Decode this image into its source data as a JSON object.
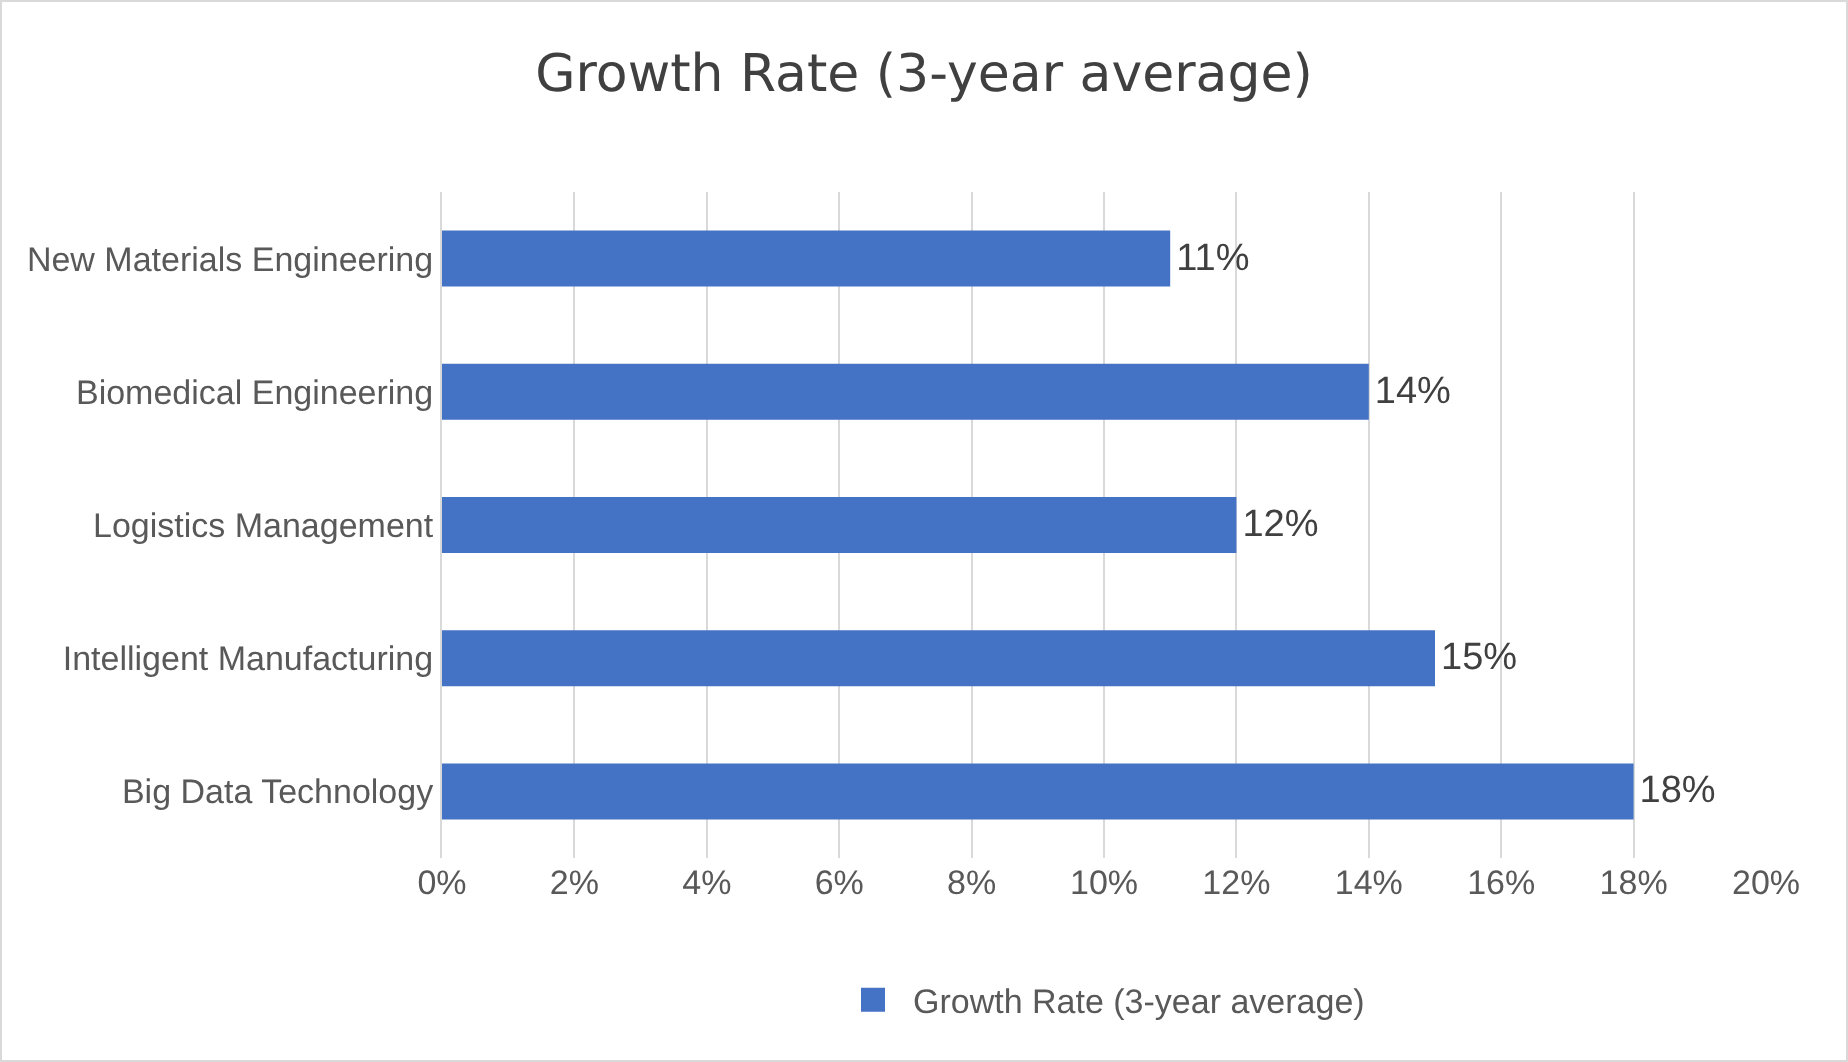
{
  "chart_data": {
    "type": "bar",
    "orientation": "horizontal",
    "title": "Growth Rate (3-year average)",
    "categories": [
      "New Materials Engineering",
      "Biomedical Engineering",
      "Logistics Management",
      "Intelligent Manufacturing",
      "Big Data Technology"
    ],
    "series": [
      {
        "name": "Growth Rate (3-year average)",
        "color": "#4472c4",
        "values": [
          11,
          14,
          12,
          15,
          18
        ],
        "value_labels": [
          "11%",
          "14%",
          "12%",
          "15%",
          "18%"
        ]
      }
    ],
    "xlim": [
      0,
      20
    ],
    "xticks": [
      {
        "value": 0,
        "label": "0%"
      },
      {
        "value": 2,
        "label": "2%"
      },
      {
        "value": 4,
        "label": "4%"
      },
      {
        "value": 6,
        "label": "6%"
      },
      {
        "value": 8,
        "label": "8%"
      },
      {
        "value": 10,
        "label": "10%"
      },
      {
        "value": 12,
        "label": "12%"
      },
      {
        "value": 14,
        "label": "14%"
      },
      {
        "value": 16,
        "label": "16%"
      },
      {
        "value": 18,
        "label": "18%"
      },
      {
        "value": 20,
        "label": "20%"
      }
    ],
    "grid": "x",
    "legend": "bottom"
  }
}
